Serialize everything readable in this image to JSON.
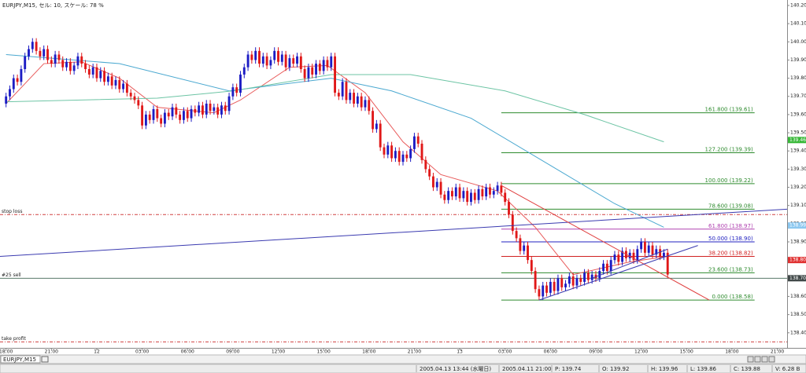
{
  "chart_data": {
    "type": "candlestick",
    "title": "EURJPY,M15, セル: 10, スケール: 78 %",
    "colors": {
      "up": "#1c1cc4",
      "down": "#e01818"
    },
    "open": [
      139.66,
      139.7,
      139.74,
      139.8,
      139.78,
      139.85,
      139.92,
      139.96,
      140.0,
      139.95,
      139.92,
      139.96,
      139.9,
      139.88,
      139.93,
      139.9,
      139.86,
      139.89,
      139.84,
      139.87,
      139.92,
      139.88,
      139.85,
      139.82,
      139.86,
      139.8,
      139.84,
      139.78,
      139.81,
      139.76,
      139.79,
      139.74,
      139.77,
      139.72,
      139.7,
      139.68,
      139.65,
      139.54,
      139.6,
      139.57,
      139.63,
      139.58,
      139.55,
      139.61,
      139.59,
      139.64,
      139.6,
      139.57,
      139.62,
      139.58,
      139.63,
      139.61,
      139.65,
      139.6,
      139.66,
      139.62,
      139.64,
      139.6,
      139.65,
      139.62,
      139.7,
      139.75,
      139.72,
      139.82,
      139.86,
      139.93,
      139.9,
      139.95,
      139.88,
      139.92,
      139.87,
      139.9,
      139.95,
      139.89,
      139.93,
      139.86,
      139.91,
      139.88,
      139.92,
      139.85,
      139.8,
      139.86,
      139.82,
      139.88,
      139.84,
      139.9,
      139.86,
      139.92,
      139.72,
      139.7,
      139.78,
      139.68,
      139.72,
      139.66,
      139.7,
      139.64,
      139.68,
      139.62,
      139.52,
      139.55,
      139.42,
      139.38,
      139.43,
      139.36,
      139.4,
      139.34,
      139.38,
      139.36,
      139.41,
      139.48,
      139.44,
      139.35,
      139.3,
      139.26,
      139.2,
      139.23,
      139.16,
      139.13,
      139.18,
      139.15,
      139.2,
      139.14,
      139.18,
      139.12,
      139.17,
      139.13,
      139.19,
      139.15,
      139.2,
      139.16,
      139.18,
      139.21,
      139.17,
      139.12,
      139.05,
      138.96,
      138.92,
      138.85,
      138.88,
      138.8,
      138.74,
      138.64,
      138.6,
      138.66,
      138.62,
      138.68,
      138.63,
      138.7,
      138.65,
      138.67,
      138.71,
      138.66,
      138.7,
      138.68,
      138.73,
      138.69,
      138.72,
      138.7,
      138.74,
      138.78,
      138.74,
      138.8,
      138.83,
      138.79,
      138.85,
      138.81,
      138.84,
      138.8,
      138.86,
      138.9,
      138.84,
      138.88,
      138.83,
      138.86,
      138.82,
      138.84
    ],
    "high": [
      139.72,
      139.76,
      139.82,
      139.82,
      139.87,
      139.94,
      139.98,
      140.02,
      140.02,
      139.97,
      139.98,
      139.98,
      139.92,
      139.95,
      139.95,
      139.92,
      139.91,
      139.91,
      139.89,
      139.94,
      139.94,
      139.9,
      139.87,
      139.88,
      139.88,
      139.86,
      139.86,
      139.83,
      139.83,
      139.81,
      139.81,
      139.79,
      139.79,
      139.74,
      139.72,
      139.7,
      139.67,
      139.62,
      139.62,
      139.65,
      139.65,
      139.6,
      139.63,
      139.63,
      139.66,
      139.66,
      139.62,
      139.64,
      139.64,
      139.65,
      139.65,
      139.67,
      139.67,
      139.68,
      139.68,
      139.66,
      139.66,
      139.67,
      139.67,
      139.72,
      139.77,
      139.77,
      139.84,
      139.88,
      139.95,
      139.95,
      139.97,
      139.97,
      139.94,
      139.94,
      139.92,
      139.97,
      139.97,
      139.95,
      139.95,
      139.93,
      139.93,
      139.94,
      139.94,
      139.87,
      139.88,
      139.88,
      139.9,
      139.9,
      139.92,
      139.92,
      139.94,
      139.94,
      139.74,
      139.8,
      139.8,
      139.74,
      139.74,
      139.72,
      139.72,
      139.7,
      139.7,
      139.64,
      139.57,
      139.57,
      139.44,
      139.45,
      139.45,
      139.42,
      139.42,
      139.4,
      139.4,
      139.43,
      139.5,
      139.5,
      139.46,
      139.37,
      139.32,
      139.28,
      139.25,
      139.25,
      139.18,
      139.2,
      139.2,
      139.22,
      139.22,
      139.2,
      139.2,
      139.19,
      139.19,
      139.21,
      139.21,
      139.22,
      139.22,
      139.2,
      139.23,
      139.23,
      139.19,
      139.14,
      139.07,
      138.98,
      138.94,
      138.9,
      138.9,
      138.82,
      138.76,
      138.66,
      138.68,
      138.68,
      138.7,
      138.7,
      138.72,
      138.72,
      138.69,
      138.73,
      138.73,
      138.72,
      138.72,
      138.75,
      138.75,
      138.74,
      138.74,
      138.76,
      138.8,
      138.8,
      138.82,
      138.85,
      138.85,
      138.87,
      138.87,
      138.86,
      138.86,
      138.88,
      138.92,
      138.92,
      138.9,
      138.9,
      138.88,
      138.88,
      138.86,
      138.86
    ],
    "low": [
      139.64,
      139.68,
      139.72,
      139.76,
      139.76,
      139.83,
      139.9,
      139.94,
      139.93,
      139.9,
      139.9,
      139.88,
      139.86,
      139.86,
      139.88,
      139.84,
      139.84,
      139.82,
      139.82,
      139.85,
      139.86,
      139.83,
      139.8,
      139.8,
      139.78,
      139.78,
      139.76,
      139.76,
      139.74,
      139.74,
      139.72,
      139.72,
      139.7,
      139.68,
      139.66,
      139.63,
      139.52,
      139.52,
      139.55,
      139.55,
      139.56,
      139.53,
      139.53,
      139.57,
      139.57,
      139.58,
      139.55,
      139.55,
      139.56,
      139.56,
      139.59,
      139.59,
      139.58,
      139.58,
      139.6,
      139.6,
      139.58,
      139.58,
      139.6,
      139.6,
      139.68,
      139.7,
      139.7,
      139.8,
      139.84,
      139.88,
      139.88,
      139.86,
      139.86,
      139.85,
      139.85,
      139.88,
      139.87,
      139.87,
      139.84,
      139.84,
      139.86,
      139.86,
      139.83,
      139.78,
      139.78,
      139.8,
      139.8,
      139.82,
      139.82,
      139.84,
      139.84,
      139.7,
      139.68,
      139.68,
      139.66,
      139.66,
      139.64,
      139.64,
      139.62,
      139.62,
      139.6,
      139.5,
      139.5,
      139.4,
      139.36,
      139.36,
      139.34,
      139.34,
      139.32,
      139.32,
      139.34,
      139.34,
      139.39,
      139.42,
      139.33,
      139.28,
      139.24,
      139.18,
      139.18,
      139.14,
      139.11,
      139.11,
      139.13,
      139.13,
      139.12,
      139.12,
      139.1,
      139.1,
      139.11,
      139.11,
      139.13,
      139.13,
      139.14,
      139.14,
      139.16,
      139.15,
      139.1,
      139.03,
      138.94,
      138.9,
      138.83,
      138.83,
      138.78,
      138.72,
      138.62,
      138.58,
      138.58,
      138.6,
      138.6,
      138.61,
      138.61,
      138.63,
      138.63,
      138.65,
      138.64,
      138.64,
      138.66,
      138.66,
      138.67,
      138.67,
      138.68,
      138.68,
      138.72,
      138.72,
      138.72,
      138.78,
      138.77,
      138.77,
      138.79,
      138.79,
      138.78,
      138.78,
      138.84,
      138.82,
      138.82,
      138.81,
      138.81,
      138.8,
      138.8,
      138.7
    ],
    "close": [
      139.7,
      139.74,
      139.8,
      139.78,
      139.85,
      139.92,
      139.96,
      140.0,
      139.95,
      139.92,
      139.96,
      139.9,
      139.88,
      139.93,
      139.9,
      139.86,
      139.89,
      139.84,
      139.87,
      139.92,
      139.88,
      139.85,
      139.82,
      139.86,
      139.8,
      139.84,
      139.78,
      139.81,
      139.76,
      139.79,
      139.74,
      139.77,
      139.72,
      139.7,
      139.68,
      139.65,
      139.54,
      139.6,
      139.57,
      139.63,
      139.58,
      139.55,
      139.61,
      139.59,
      139.64,
      139.6,
      139.57,
      139.62,
      139.58,
      139.63,
      139.61,
      139.65,
      139.6,
      139.66,
      139.62,
      139.64,
      139.6,
      139.65,
      139.62,
      139.7,
      139.75,
      139.72,
      139.82,
      139.86,
      139.93,
      139.9,
      139.95,
      139.88,
      139.92,
      139.87,
      139.9,
      139.95,
      139.89,
      139.93,
      139.86,
      139.91,
      139.88,
      139.92,
      139.85,
      139.8,
      139.86,
      139.82,
      139.88,
      139.84,
      139.9,
      139.86,
      139.92,
      139.72,
      139.7,
      139.78,
      139.68,
      139.72,
      139.66,
      139.7,
      139.64,
      139.68,
      139.62,
      139.52,
      139.55,
      139.42,
      139.38,
      139.43,
      139.36,
      139.4,
      139.34,
      139.38,
      139.36,
      139.41,
      139.48,
      139.44,
      139.35,
      139.3,
      139.26,
      139.2,
      139.23,
      139.16,
      139.13,
      139.18,
      139.15,
      139.2,
      139.14,
      139.18,
      139.12,
      139.17,
      139.13,
      139.19,
      139.15,
      139.2,
      139.16,
      139.18,
      139.21,
      139.17,
      139.12,
      139.05,
      138.96,
      138.92,
      138.85,
      138.88,
      138.8,
      138.74,
      138.64,
      138.6,
      138.66,
      138.62,
      138.68,
      138.63,
      138.7,
      138.65,
      138.67,
      138.71,
      138.66,
      138.7,
      138.68,
      138.73,
      138.69,
      138.72,
      138.7,
      138.74,
      138.78,
      138.74,
      138.8,
      138.83,
      138.79,
      138.85,
      138.81,
      138.84,
      138.8,
      138.86,
      138.9,
      138.84,
      138.88,
      138.83,
      138.86,
      138.82,
      138.84,
      138.72
    ],
    "xlim": [
      -1.6,
      206.6
    ],
    "xticks": [
      {
        "value": 0,
        "label": "18:00"
      },
      {
        "value": 12,
        "label": "21:00"
      },
      {
        "value": 24,
        "label": "12"
      },
      {
        "value": 36,
        "label": "03:00"
      },
      {
        "value": 48,
        "label": "06:00"
      },
      {
        "value": 60,
        "label": "09:00"
      },
      {
        "value": 72,
        "label": "12:00"
      },
      {
        "value": 84,
        "label": "15:00"
      },
      {
        "value": 96,
        "label": "18:00"
      },
      {
        "value": 108,
        "label": "21:00"
      },
      {
        "value": 120,
        "label": "13"
      },
      {
        "value": 132,
        "label": "03:00"
      },
      {
        "value": 144,
        "label": "06:00"
      },
      {
        "value": 156,
        "label": "09:00"
      },
      {
        "value": 168,
        "label": "12:00"
      },
      {
        "value": 180,
        "label": "15:00"
      },
      {
        "value": 192,
        "label": "18:00"
      },
      {
        "value": 204,
        "label": "21:00"
      }
    ],
    "ylim": [
      138.33,
      140.23
    ],
    "yticks": [
      {
        "value": 140.2,
        "label": "140.20"
      },
      {
        "value": 140.1,
        "label": "140.10"
      },
      {
        "value": 140.0,
        "label": "140.00"
      },
      {
        "value": 139.9,
        "label": "139.90"
      },
      {
        "value": 139.8,
        "label": "139.80"
      },
      {
        "value": 139.7,
        "label": "139.70"
      },
      {
        "value": 139.6,
        "label": "139.60"
      },
      {
        "value": 139.5,
        "label": "139.50"
      },
      {
        "value": 139.4,
        "label": "139.40"
      },
      {
        "value": 139.3,
        "label": "139.30"
      },
      {
        "value": 139.2,
        "label": "139.20"
      },
      {
        "value": 139.1,
        "label": "139.10"
      },
      {
        "value": 139.0,
        "label": "139.00"
      },
      {
        "value": 138.9,
        "label": "138.90"
      },
      {
        "value": 138.8,
        "label": "138.80"
      },
      {
        "value": 138.7,
        "label": "138.70"
      },
      {
        "value": 138.6,
        "label": "138.60"
      },
      {
        "value": 138.5,
        "label": "138.50"
      },
      {
        "value": 138.4,
        "label": "138.40"
      }
    ],
    "grid": false,
    "moving_averages": [
      {
        "color": "#e85a5a",
        "x": [
          0,
          10,
          20,
          30,
          40,
          55,
          62,
          75,
          85,
          95,
          105,
          115,
          130,
          140,
          150,
          165,
          175
        ],
        "values": [
          139.66,
          139.88,
          139.89,
          139.8,
          139.64,
          139.61,
          139.68,
          139.86,
          139.87,
          139.72,
          139.45,
          139.27,
          139.18,
          138.98,
          138.72,
          138.79,
          138.82
        ]
      },
      {
        "color": "#4aa8d0",
        "x": [
          0,
          30,
          59,
          86,
          102,
          123,
          144,
          161,
          174
        ],
        "values": [
          139.93,
          139.88,
          139.73,
          139.8,
          139.73,
          139.58,
          139.32,
          139.11,
          138.98
        ]
      },
      {
        "color": "#6cc4a4",
        "x": [
          0,
          40,
          60,
          86,
          107,
          132,
          153,
          174
        ],
        "values": [
          139.67,
          139.69,
          139.73,
          139.82,
          139.82,
          139.73,
          139.6,
          139.45
        ]
      }
    ],
    "trendlines": [
      {
        "color": "#3a3ab0",
        "x": [
          -1.6,
          206.6
        ],
        "values": [
          138.82,
          139.08
        ]
      },
      {
        "color": "#e04040",
        "x": [
          131,
          186
        ],
        "values": [
          139.21,
          138.58
        ]
      },
      {
        "color": "#3a3ab0",
        "x": [
          141,
          183
        ],
        "values": [
          138.58,
          138.88
        ]
      },
      {
        "color": "#3a3ab0",
        "x": [
          155,
          175
        ],
        "values": [
          138.7,
          138.86
        ]
      }
    ],
    "order_lines": [
      {
        "label": "stop loss",
        "value": 139.05,
        "color": "#d04040",
        "dashed": true
      },
      {
        "label": "#25 sell",
        "value": 138.7,
        "color": "#5a7a6a",
        "dashed": false
      },
      {
        "label": "take profit",
        "value": 138.35,
        "color": "#d04040",
        "dashed": true
      }
    ],
    "fib_range": [
      131,
      198
    ],
    "fib_levels": [
      {
        "label": "161.800 (139.61)",
        "value": 139.61,
        "color": "#2e8b2e"
      },
      {
        "label": "127.200 (139.39)",
        "value": 139.39,
        "color": "#2e8b2e"
      },
      {
        "label": "100.000 (139.22)",
        "value": 139.22,
        "color": "#2e8b2e"
      },
      {
        "label": "78.600 (139.08)",
        "value": 139.08,
        "color": "#2e8b2e"
      },
      {
        "label": "61.800 (138.97)",
        "value": 138.97,
        "color": "#b040b0"
      },
      {
        "label": "50.000 (138.90)",
        "value": 138.9,
        "color": "#2020c0"
      },
      {
        "label": "38.200 (138.82)",
        "value": 138.82,
        "color": "#d02020"
      },
      {
        "label": "23.600 (138.73)",
        "value": 138.73,
        "color": "#2e8b2e"
      },
      {
        "label": "0.000 (138.58)",
        "value": 138.58,
        "color": "#2e8b2e"
      }
    ],
    "price_tags": [
      {
        "tag": 139.46,
        "color": "#38b838"
      },
      {
        "tag": 138.99,
        "color": "#8cc8f0"
      },
      {
        "tag": {
          "value": 138.8,
          "label": "138.80"
        },
        "color": "#e03030"
      },
      {
        "tag": {
          "value": 138.7,
          "label": "138.70"
        },
        "color": "#404848"
      }
    ]
  },
  "tab": "EURJPY,M15",
  "status_bar": [
    "2005.04.13 13:44 (水曜日)",
    "2005.04.11 21:00",
    "P: 139.74",
    "O: 139.92",
    "H: 139.96",
    "L: 139.86",
    "C: 139.88",
    "V: 6.28 B"
  ]
}
